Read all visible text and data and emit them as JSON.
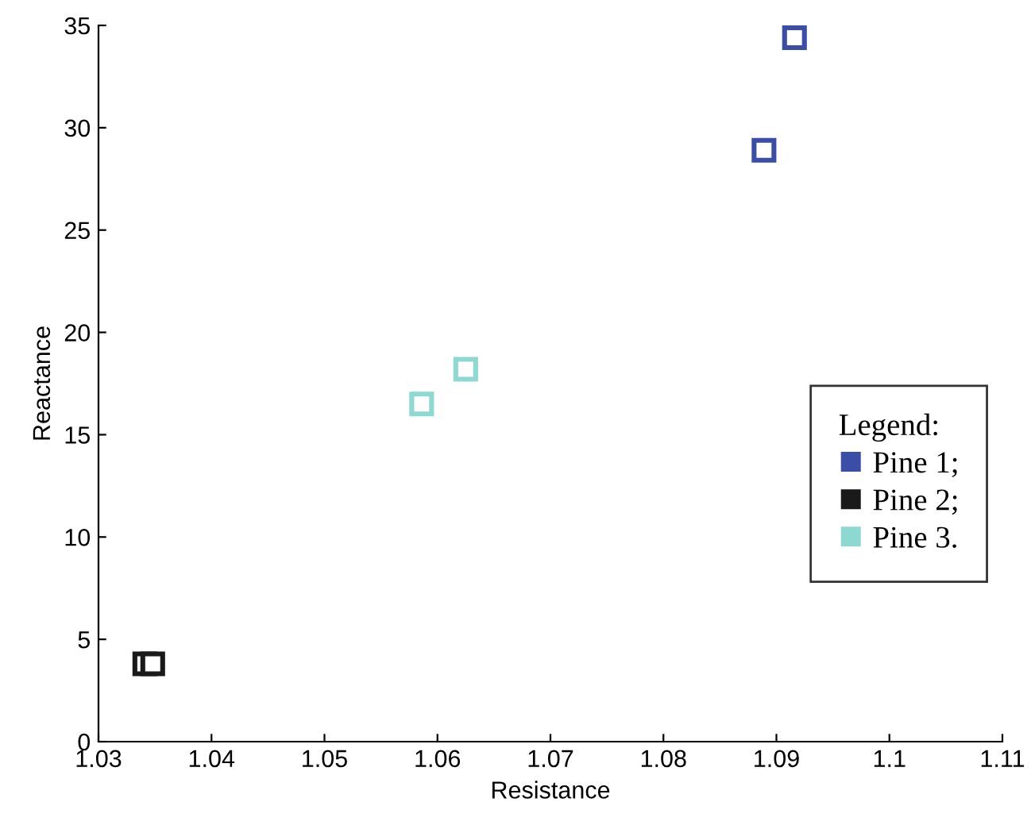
{
  "chart_data": {
    "type": "scatter",
    "xlabel": "Resistance",
    "ylabel": "Reactance",
    "legend_title": "Legend:",
    "series": [
      {
        "name": "Pine 1;",
        "color": "#3a4ea8",
        "x": [
          1.0916,
          1.0889
        ],
        "values": [
          34.4,
          28.9
        ]
      },
      {
        "name": "Pine 2;",
        "color": "#1a1a1a",
        "x": [
          1.0341,
          1.0348
        ],
        "values": [
          3.8,
          3.8
        ]
      },
      {
        "name": "Pine 3.",
        "color": "#8ed8d2",
        "x": [
          1.0586,
          1.0625
        ],
        "values": [
          16.5,
          18.2
        ]
      }
    ],
    "xlim": [
      1.03,
      1.11
    ],
    "xticks": [
      1.03,
      1.04,
      1.05,
      1.06,
      1.07,
      1.08,
      1.09,
      1.1,
      1.11
    ],
    "ylim": [
      0,
      35
    ],
    "yticks": [
      0,
      5,
      10,
      15,
      20,
      25,
      30,
      35
    ],
    "marker": "square",
    "grid": false,
    "legend": "right"
  }
}
